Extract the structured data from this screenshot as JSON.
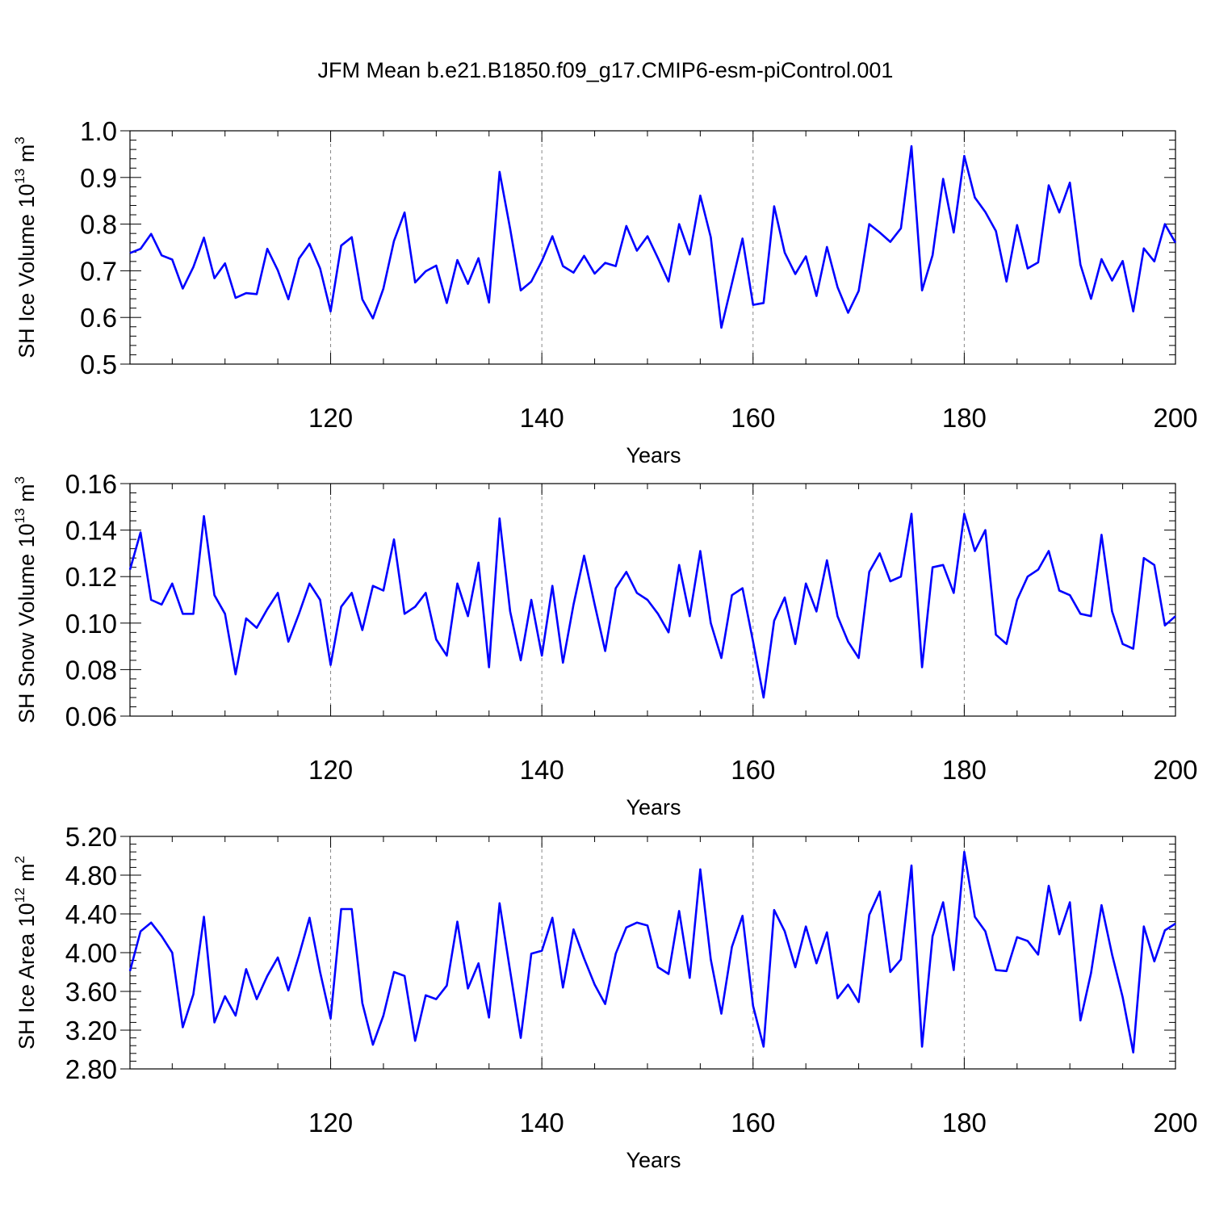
{
  "title": "JFM Mean b.e21.B1850.f09_g17.CMIP6-esm-piControl.001",
  "colors": {
    "series": "#0000ff",
    "axis": "#000000",
    "grid": "#888888"
  },
  "chart_data": [
    {
      "type": "line",
      "ylabel": "SH Ice Volume 10",
      "ylabel_exp": "13",
      "ylabel_unit": "m",
      "ylabel_unit_exp": "3",
      "xlabel": "Years",
      "xlim": [
        101,
        200
      ],
      "ylim": [
        0.5,
        1.0
      ],
      "yticks": [
        "0.5",
        "0.6",
        "0.7",
        "0.8",
        "0.9",
        "1.0"
      ],
      "xticks": [
        "120",
        "140",
        "160",
        "180",
        "200"
      ],
      "series": [
        {
          "name": "SH Ice Volume",
          "values": [
            0.738,
            0.747,
            0.779,
            0.733,
            0.724,
            0.662,
            0.708,
            0.771,
            0.684,
            0.716,
            0.642,
            0.652,
            0.65,
            0.747,
            0.701,
            0.639,
            0.726,
            0.758,
            0.705,
            0.613,
            0.754,
            0.772,
            0.639,
            0.598,
            0.662,
            0.764,
            0.825,
            0.675,
            0.699,
            0.711,
            0.631,
            0.723,
            0.672,
            0.727,
            0.632,
            0.912,
            0.79,
            0.658,
            0.677,
            0.721,
            0.774,
            0.71,
            0.696,
            0.732,
            0.694,
            0.717,
            0.71,
            0.796,
            0.743,
            0.774,
            0.727,
            0.677,
            0.8,
            0.735,
            0.861,
            0.772,
            0.578,
            0.673,
            0.769,
            0.627,
            0.631,
            0.838,
            0.739,
            0.693,
            0.731,
            0.646,
            0.751,
            0.665,
            0.61,
            0.657,
            0.8,
            0.782,
            0.762,
            0.791,
            0.967,
            0.658,
            0.733,
            0.897,
            0.782,
            0.946,
            0.857,
            0.826,
            0.785,
            0.677,
            0.798,
            0.705,
            0.718,
            0.883,
            0.825,
            0.889,
            0.713,
            0.64,
            0.725,
            0.679,
            0.721,
            0.613,
            0.748,
            0.72,
            0.8,
            0.76
          ]
        }
      ]
    },
    {
      "type": "line",
      "ylabel": "SH Snow Volume 10",
      "ylabel_exp": "13",
      "ylabel_unit": "m",
      "ylabel_unit_exp": "3",
      "xlabel": "Years",
      "xlim": [
        101,
        200
      ],
      "ylim": [
        0.06,
        0.16
      ],
      "yticks": [
        "0.06",
        "0.08",
        "0.10",
        "0.12",
        "0.14",
        "0.16"
      ],
      "xticks": [
        "120",
        "140",
        "160",
        "180",
        "200"
      ],
      "series": [
        {
          "name": "SH Snow Volume",
          "values": [
            0.123,
            0.139,
            0.11,
            0.108,
            0.117,
            0.104,
            0.104,
            0.146,
            0.112,
            0.104,
            0.078,
            0.102,
            0.098,
            0.106,
            0.113,
            0.092,
            0.104,
            0.117,
            0.11,
            0.082,
            0.107,
            0.113,
            0.097,
            0.116,
            0.114,
            0.136,
            0.104,
            0.107,
            0.113,
            0.093,
            0.086,
            0.117,
            0.103,
            0.126,
            0.081,
            0.145,
            0.105,
            0.084,
            0.11,
            0.086,
            0.116,
            0.083,
            0.108,
            0.129,
            0.108,
            0.088,
            0.115,
            0.122,
            0.113,
            0.11,
            0.104,
            0.096,
            0.125,
            0.103,
            0.131,
            0.1,
            0.085,
            0.112,
            0.115,
            0.092,
            0.068,
            0.101,
            0.111,
            0.091,
            0.117,
            0.105,
            0.127,
            0.103,
            0.092,
            0.085,
            0.122,
            0.13,
            0.118,
            0.12,
            0.147,
            0.081,
            0.124,
            0.125,
            0.113,
            0.147,
            0.131,
            0.14,
            0.095,
            0.091,
            0.11,
            0.12,
            0.123,
            0.131,
            0.114,
            0.112,
            0.104,
            0.103,
            0.138,
            0.105,
            0.091,
            0.089,
            0.128,
            0.125,
            0.099,
            0.103
          ]
        }
      ]
    },
    {
      "type": "line",
      "ylabel": "SH Ice Area 10",
      "ylabel_exp": "12",
      "ylabel_unit": "m",
      "ylabel_unit_exp": "2",
      "xlabel": "Years",
      "xlim": [
        101,
        200
      ],
      "ylim": [
        2.8,
        5.2
      ],
      "yticks": [
        "2.80",
        "3.20",
        "3.60",
        "4.00",
        "4.40",
        "4.80",
        "5.20"
      ],
      "xticks": [
        "120",
        "140",
        "160",
        "180",
        "200"
      ],
      "series": [
        {
          "name": "SH Ice Area",
          "values": [
            3.81,
            4.22,
            4.31,
            4.17,
            4.0,
            3.23,
            3.57,
            4.37,
            3.28,
            3.55,
            3.35,
            3.83,
            3.52,
            3.76,
            3.95,
            3.61,
            3.97,
            4.36,
            3.8,
            3.32,
            4.45,
            4.45,
            3.48,
            3.05,
            3.35,
            3.8,
            3.76,
            3.09,
            3.56,
            3.52,
            3.66,
            4.32,
            3.63,
            3.89,
            3.33,
            4.51,
            3.81,
            3.12,
            3.99,
            4.02,
            4.36,
            3.64,
            4.24,
            3.94,
            3.67,
            3.47,
            3.99,
            4.26,
            4.31,
            4.28,
            3.85,
            3.78,
            4.43,
            3.74,
            4.86,
            3.93,
            3.37,
            4.06,
            4.38,
            3.45,
            3.03,
            4.44,
            4.22,
            3.85,
            4.27,
            3.89,
            4.21,
            3.53,
            3.67,
            3.49,
            4.39,
            4.63,
            3.8,
            3.93,
            4.9,
            3.03,
            4.17,
            4.52,
            3.82,
            5.04,
            4.37,
            4.22,
            3.82,
            3.81,
            4.16,
            4.12,
            3.98,
            4.69,
            4.19,
            4.52,
            3.3,
            3.79,
            4.49,
            3.98,
            3.54,
            2.97,
            4.27,
            3.91,
            4.23,
            4.3
          ]
        }
      ]
    }
  ]
}
